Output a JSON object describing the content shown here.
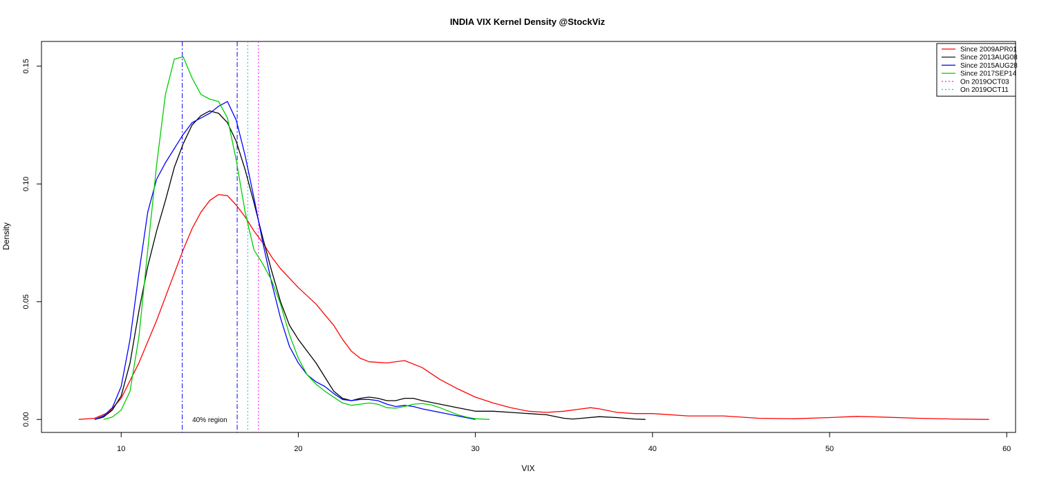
{
  "chart_data": {
    "type": "line",
    "title": "INDIA VIX Kernel Density @StockViz",
    "xlabel": "VIX",
    "ylabel": "Density",
    "xlim": [
      5.5,
      60.5
    ],
    "ylim": [
      -0.0055,
      0.1605
    ],
    "x_ticks": [
      10,
      20,
      30,
      40,
      50,
      60
    ],
    "x_tick_labels": [
      "10",
      "20",
      "30",
      "40",
      "50",
      "60"
    ],
    "y_ticks": [
      0.0,
      0.05,
      0.1,
      0.15
    ],
    "y_tick_labels": [
      "0.00",
      "0.05",
      "0.10",
      "0.15"
    ],
    "grid": false,
    "legend_position": "top-right",
    "series": [
      {
        "name": "Since 2009APR01",
        "color": "#ff0000",
        "style": "solid",
        "x": [
          7.6,
          8.5,
          9.3,
          10.0,
          11.0,
          12.0,
          13.0,
          13.5,
          14.0,
          14.5,
          15.0,
          15.5,
          16.0,
          16.5,
          17.0,
          17.5,
          18.0,
          18.5,
          19.0,
          20.0,
          21.0,
          22.0,
          22.5,
          23.0,
          23.5,
          24.0,
          25.0,
          26.0,
          27.0,
          28.0,
          29.0,
          30.0,
          31.0,
          32.0,
          33.0,
          34.0,
          35.0,
          36.0,
          36.5,
          37.0,
          38.0,
          39.0,
          40.0,
          42.0,
          44.0,
          46.0,
          48.0,
          50.0,
          51.5,
          53.0,
          55.0,
          57.0,
          59.0
        ],
        "y": [
          0.0,
          0.0005,
          0.003,
          0.009,
          0.024,
          0.042,
          0.062,
          0.072,
          0.081,
          0.088,
          0.093,
          0.0955,
          0.095,
          0.091,
          0.086,
          0.08,
          0.075,
          0.069,
          0.064,
          0.056,
          0.049,
          0.04,
          0.034,
          0.029,
          0.026,
          0.0245,
          0.024,
          0.025,
          0.022,
          0.017,
          0.013,
          0.0095,
          0.007,
          0.005,
          0.0035,
          0.003,
          0.0035,
          0.0045,
          0.005,
          0.0045,
          0.003,
          0.0025,
          0.0025,
          0.0015,
          0.0015,
          0.0005,
          0.0003,
          0.0008,
          0.0013,
          0.001,
          0.0005,
          0.0002,
          0.0
        ]
      },
      {
        "name": "Since 2013AUG08",
        "color": "#000000",
        "style": "solid",
        "x": [
          8.5,
          9.0,
          9.5,
          10.0,
          10.5,
          11.0,
          11.5,
          12.0,
          12.5,
          13.0,
          13.5,
          14.0,
          14.5,
          15.0,
          15.5,
          16.0,
          16.5,
          17.0,
          17.5,
          18.0,
          18.5,
          19.0,
          19.5,
          20.0,
          20.5,
          21.0,
          21.5,
          22.0,
          22.5,
          23.0,
          23.5,
          24.0,
          24.5,
          25.0,
          25.5,
          26.0,
          26.5,
          27.0,
          28.0,
          29.0,
          30.0,
          31.0,
          32.0,
          33.0,
          34.0,
          35.0,
          35.5,
          36.0,
          37.0,
          38.0,
          39.0,
          39.6
        ],
        "y": [
          0.0,
          0.001,
          0.004,
          0.01,
          0.024,
          0.046,
          0.065,
          0.08,
          0.093,
          0.107,
          0.117,
          0.125,
          0.129,
          0.131,
          0.13,
          0.126,
          0.118,
          0.106,
          0.092,
          0.077,
          0.063,
          0.05,
          0.04,
          0.034,
          0.029,
          0.024,
          0.018,
          0.012,
          0.009,
          0.008,
          0.009,
          0.0095,
          0.009,
          0.008,
          0.008,
          0.009,
          0.009,
          0.008,
          0.0065,
          0.005,
          0.0035,
          0.0035,
          0.003,
          0.0025,
          0.002,
          0.0005,
          0.0002,
          0.0005,
          0.0012,
          0.0008,
          0.0002,
          0.0
        ]
      },
      {
        "name": "Since 2015AUG28",
        "color": "#0000ff",
        "style": "solid",
        "x": [
          8.5,
          9.0,
          9.5,
          10.0,
          10.5,
          11.0,
          11.5,
          12.0,
          12.5,
          13.0,
          13.5,
          14.0,
          14.5,
          15.0,
          15.5,
          16.0,
          16.5,
          17.0,
          17.5,
          18.0,
          18.5,
          19.0,
          19.5,
          20.0,
          20.5,
          21.0,
          21.5,
          22.0,
          22.5,
          23.0,
          23.5,
          24.0,
          24.5,
          25.0,
          25.5,
          26.0,
          26.5,
          27.0,
          28.0,
          29.0,
          30.0
        ],
        "y": [
          0.0,
          0.0015,
          0.005,
          0.014,
          0.034,
          0.062,
          0.088,
          0.102,
          0.109,
          0.115,
          0.121,
          0.126,
          0.128,
          0.13,
          0.133,
          0.135,
          0.127,
          0.112,
          0.094,
          0.075,
          0.058,
          0.043,
          0.031,
          0.024,
          0.019,
          0.016,
          0.014,
          0.011,
          0.0085,
          0.008,
          0.0085,
          0.0085,
          0.008,
          0.0065,
          0.0055,
          0.006,
          0.0055,
          0.0045,
          0.003,
          0.0015,
          0.0
        ]
      },
      {
        "name": "Since 2017SEP14",
        "color": "#00cc00",
        "style": "solid",
        "x": [
          9.0,
          9.5,
          10.0,
          10.5,
          11.0,
          11.5,
          12.0,
          12.5,
          13.0,
          13.5,
          14.0,
          14.5,
          15.0,
          15.5,
          16.0,
          16.5,
          17.0,
          17.5,
          18.0,
          18.5,
          19.0,
          19.5,
          20.0,
          20.5,
          21.0,
          21.5,
          22.0,
          22.5,
          23.0,
          23.5,
          24.0,
          24.5,
          25.0,
          25.5,
          26.0,
          26.5,
          27.0,
          27.5,
          28.0,
          28.5,
          29.0,
          29.5,
          30.0,
          30.8
        ],
        "y": [
          0.0,
          0.001,
          0.004,
          0.012,
          0.035,
          0.072,
          0.108,
          0.138,
          0.153,
          0.154,
          0.145,
          0.138,
          0.136,
          0.135,
          0.128,
          0.11,
          0.088,
          0.072,
          0.066,
          0.059,
          0.049,
          0.036,
          0.026,
          0.019,
          0.015,
          0.012,
          0.0095,
          0.007,
          0.006,
          0.0065,
          0.007,
          0.0065,
          0.005,
          0.0048,
          0.0055,
          0.0065,
          0.0068,
          0.0062,
          0.005,
          0.0035,
          0.002,
          0.001,
          0.0003,
          0.0
        ]
      }
    ],
    "vlines": [
      {
        "name": "40% region lower bound",
        "x": 13.45,
        "color": "#0000ff",
        "style": "dashdot"
      },
      {
        "name": "40% region upper bound",
        "x": 16.55,
        "color": "#0000ff",
        "style": "dashdot"
      },
      {
        "name": "On 2019OCT03",
        "x": 17.75,
        "color": "#ff00ff",
        "style": "dotted"
      },
      {
        "name": "On 2019OCT11",
        "x": 17.15,
        "color": "#00cccc",
        "style": "dotted"
      }
    ],
    "annotations": [
      {
        "text": "40% region",
        "x": 15.0,
        "y": 0.0
      }
    ],
    "legend": [
      {
        "label": "Since 2009APR01",
        "color": "#ff0000",
        "style": "solid"
      },
      {
        "label": "Since 2013AUG08",
        "color": "#000000",
        "style": "solid"
      },
      {
        "label": "Since 2015AUG28",
        "color": "#0000ff",
        "style": "solid"
      },
      {
        "label": "Since 2017SEP14",
        "color": "#00cc00",
        "style": "solid"
      },
      {
        "label": "On 2019OCT03",
        "color": "#ff00ff",
        "style": "dotted"
      },
      {
        "label": "On 2019OCT11",
        "color": "#00cccc",
        "style": "dotted"
      }
    ]
  }
}
